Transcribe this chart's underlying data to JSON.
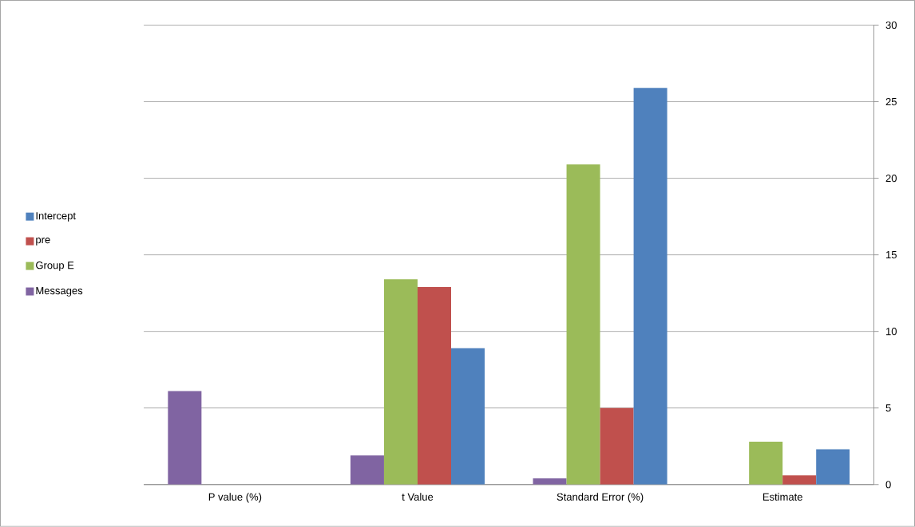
{
  "chart_data": {
    "type": "bar",
    "categories": [
      "P value (%)",
      "t Value",
      "Standard Error (%)",
      "Estimate"
    ],
    "series": [
      {
        "name": "Messages",
        "color": "#8064a2",
        "values": [
          6.1,
          1.9,
          0.4,
          0
        ]
      },
      {
        "name": "Group E",
        "color": "#9bbb59",
        "values": [
          0,
          13.4,
          20.9,
          2.8
        ]
      },
      {
        "name": "pre",
        "color": "#c0504d",
        "values": [
          0,
          12.9,
          5.0,
          0.6
        ]
      },
      {
        "name": "Intercept",
        "color": "#4f81bd",
        "values": [
          0,
          8.9,
          25.9,
          2.3
        ]
      }
    ],
    "ylim": [
      0,
      30
    ],
    "yticks": [
      0,
      5,
      10,
      15,
      20,
      25,
      30
    ],
    "grid": "y",
    "legend": "left"
  }
}
